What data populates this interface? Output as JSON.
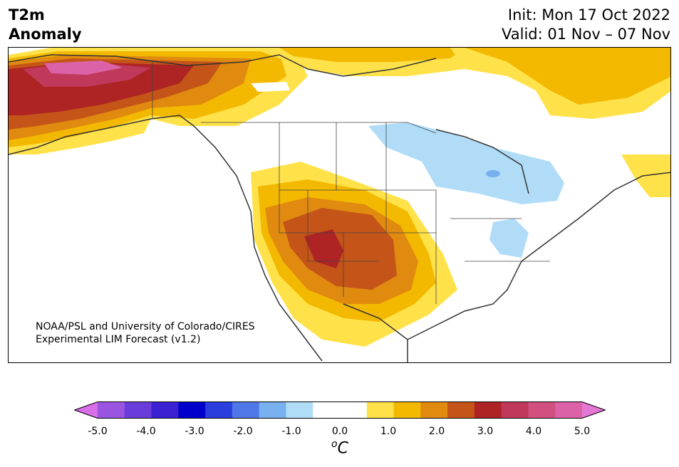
{
  "header": {
    "title_line1": "T2m",
    "title_line2": "Anomaly",
    "init": "Init: Mon 17 Oct 2022",
    "valid": "Valid: 01 Nov – 07 Nov"
  },
  "credit": {
    "line1": "NOAA/PSL and University of Colorado/CIRES",
    "line2": "Experimental LIM Forecast (v1.2)"
  },
  "colorbar": {
    "colors": [
      "#d86ee8",
      "#9a55e0",
      "#6a3ddb",
      "#3a22d3",
      "#0000cc",
      "#2a3ede",
      "#4f77e8",
      "#78b0f0",
      "#b0dcf8",
      "#ffffff",
      "#ffffff",
      "#ffe24a",
      "#f3b800",
      "#e08a10",
      "#c45418",
      "#ae2323",
      "#c0385a",
      "#d2507f",
      "#dc62a8",
      "#e476d4"
    ],
    "ticks": [
      "-5.0",
      "-4.0",
      "-3.0",
      "-2.0",
      "-1.0",
      "0.0",
      "1.0",
      "2.0",
      "3.0",
      "4.0",
      "5.0"
    ],
    "unit_sup": "o",
    "unit": "C"
  }
}
